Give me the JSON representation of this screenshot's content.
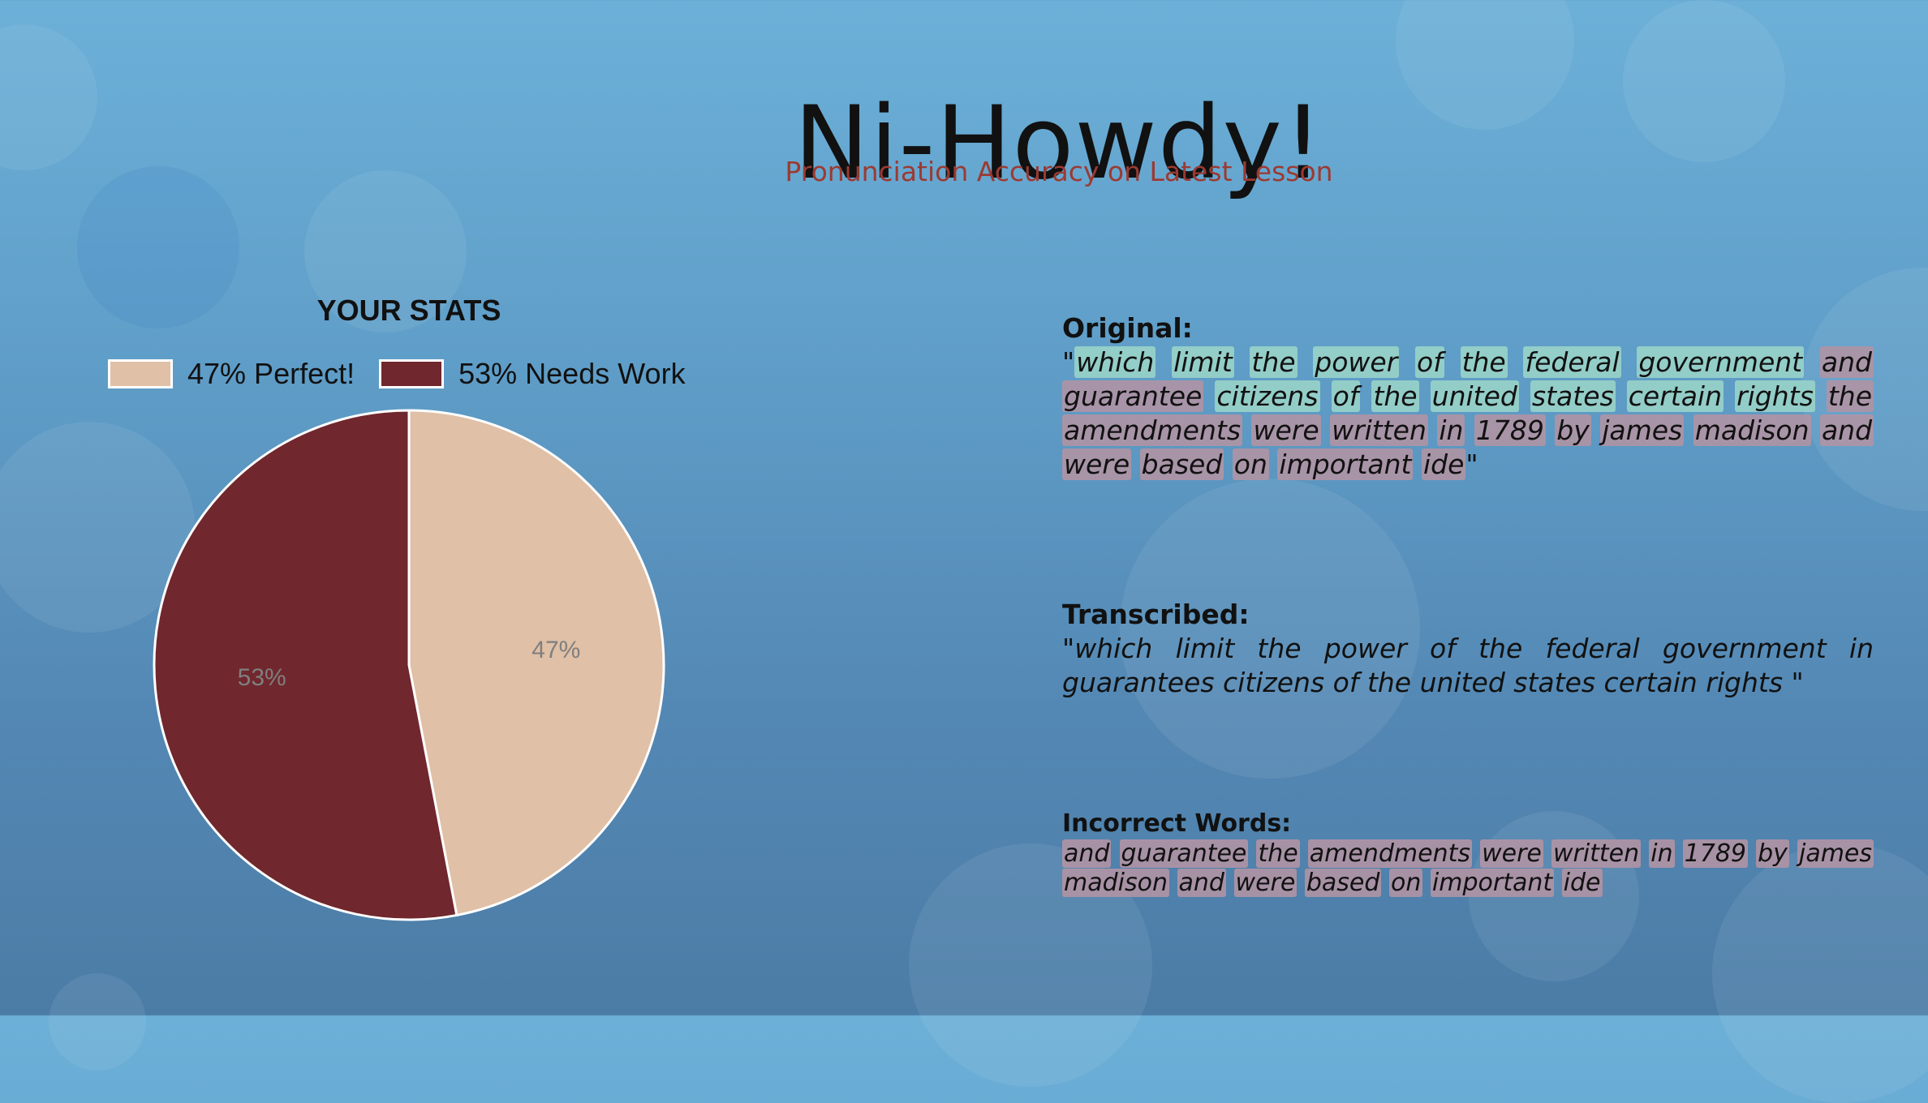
{
  "app": {
    "title": "Ni-Howdy!",
    "subtitle": "Pronunciation Accuracy on Latest Lesson"
  },
  "stats": {
    "heading": "YOUR STATS",
    "legend": [
      {
        "label": "47% Perfect!",
        "color": "#e0c0a6"
      },
      {
        "label": "53% Needs Work",
        "color": "#70272d"
      }
    ]
  },
  "chart_data": {
    "type": "pie",
    "title": "YOUR STATS",
    "slices": [
      {
        "label": "47% Perfect!",
        "value": 47,
        "display": "47%",
        "color": "#e0c0a6"
      },
      {
        "label": "53% Needs Work",
        "value": 53,
        "display": "53%",
        "color": "#70272d"
      }
    ],
    "legend_position": "top"
  },
  "original": {
    "heading": "Original:",
    "open_quote": "\"",
    "close_quote": "\"",
    "words": [
      {
        "text": "which",
        "status": "correct"
      },
      {
        "text": "limit",
        "status": "correct"
      },
      {
        "text": "the",
        "status": "correct"
      },
      {
        "text": "power",
        "status": "correct"
      },
      {
        "text": "of",
        "status": "correct"
      },
      {
        "text": "the",
        "status": "correct"
      },
      {
        "text": "federal",
        "status": "correct"
      },
      {
        "text": "government",
        "status": "correct"
      },
      {
        "text": "and",
        "status": "incorrect"
      },
      {
        "text": "guarantee",
        "status": "incorrect"
      },
      {
        "text": "citizens",
        "status": "correct"
      },
      {
        "text": "of",
        "status": "correct"
      },
      {
        "text": "the",
        "status": "correct"
      },
      {
        "text": "united",
        "status": "correct"
      },
      {
        "text": "states",
        "status": "correct"
      },
      {
        "text": "certain",
        "status": "correct"
      },
      {
        "text": "rights",
        "status": "correct"
      },
      {
        "text": "the",
        "status": "incorrect"
      },
      {
        "text": "amendments",
        "status": "incorrect"
      },
      {
        "text": "were",
        "status": "incorrect"
      },
      {
        "text": "written",
        "status": "incorrect"
      },
      {
        "text": "in",
        "status": "incorrect"
      },
      {
        "text": "1789",
        "status": "incorrect"
      },
      {
        "text": "by",
        "status": "incorrect"
      },
      {
        "text": "james",
        "status": "incorrect"
      },
      {
        "text": "madison",
        "status": "incorrect"
      },
      {
        "text": "and",
        "status": "incorrect"
      },
      {
        "text": "were",
        "status": "incorrect"
      },
      {
        "text": "based",
        "status": "incorrect"
      },
      {
        "text": "on",
        "status": "incorrect"
      },
      {
        "text": "important",
        "status": "incorrect"
      },
      {
        "text": "ide",
        "status": "incorrect"
      }
    ]
  },
  "transcribed": {
    "heading": "Transcribed:",
    "open_quote": "\"",
    "close_quote": " \"",
    "text": "which limit the power of the federal government in guarantees citizens of the united states certain rights"
  },
  "incorrect": {
    "heading": "Incorrect Words:",
    "words": [
      "and",
      "guarantee",
      "the",
      "amendments",
      "were",
      "written",
      "in",
      "1789",
      "by",
      "james",
      "madison",
      "and",
      "were",
      "based",
      "on",
      "important",
      "ide"
    ]
  }
}
